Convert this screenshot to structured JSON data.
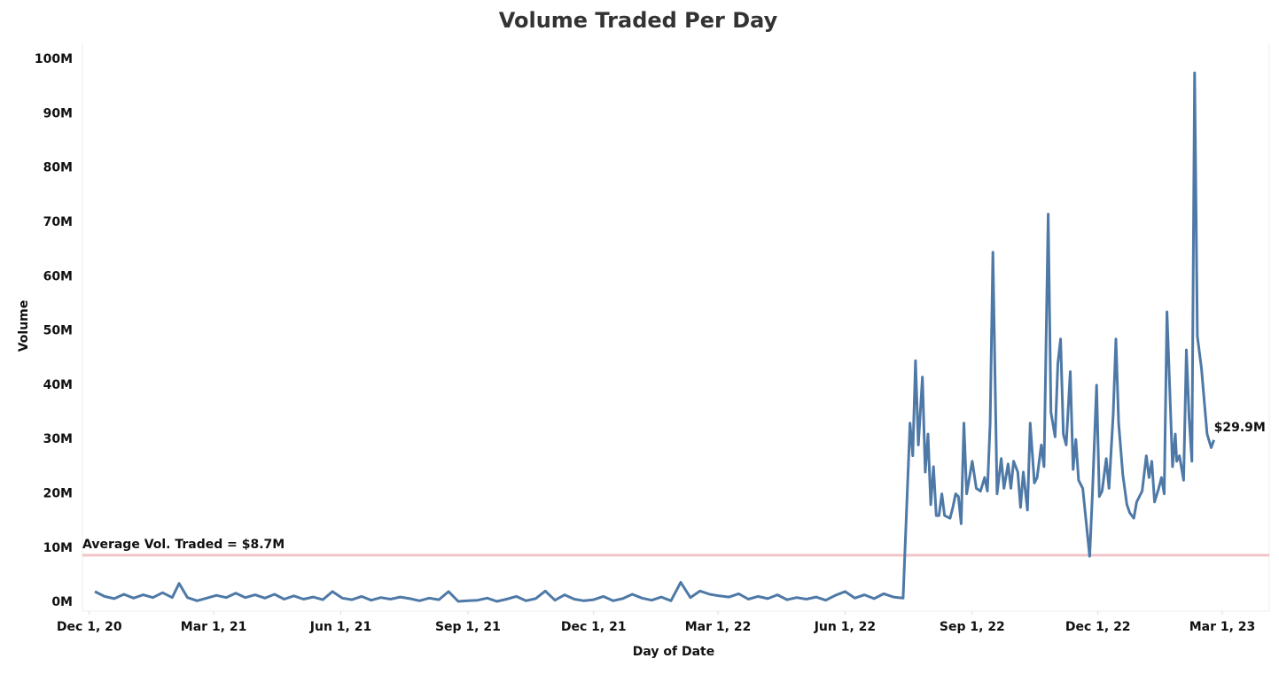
{
  "chart_data": {
    "type": "line",
    "title": "Volume Traded Per Day",
    "x_label": "Day of Date",
    "y_label": "Volume",
    "xlim": [
      "2020-11-26",
      "2023-04-04"
    ],
    "xticks": [
      {
        "value": "2020-12-01",
        "label": "Dec 1, 20"
      },
      {
        "value": "2021-03-01",
        "label": "Mar 1, 21"
      },
      {
        "value": "2021-06-01",
        "label": "Jun 1, 21"
      },
      {
        "value": "2021-09-01",
        "label": "Sep 1, 21"
      },
      {
        "value": "2021-12-01",
        "label": "Dec 1, 21"
      },
      {
        "value": "2022-03-01",
        "label": "Mar 1, 22"
      },
      {
        "value": "2022-06-01",
        "label": "Jun 1, 22"
      },
      {
        "value": "2022-09-01",
        "label": "Sep 1, 22"
      },
      {
        "value": "2022-12-01",
        "label": "Dec 1, 22"
      },
      {
        "value": "2023-03-01",
        "label": "Mar 1, 23"
      }
    ],
    "ylim": [
      -1600000,
      103100000
    ],
    "yticks": [
      {
        "value": 0,
        "label": "0M"
      },
      {
        "value": 10000000,
        "label": "10M"
      },
      {
        "value": 20000000,
        "label": "20M"
      },
      {
        "value": 30000000,
        "label": "30M"
      },
      {
        "value": 40000000,
        "label": "40M"
      },
      {
        "value": 50000000,
        "label": "50M"
      },
      {
        "value": 60000000,
        "label": "60M"
      },
      {
        "value": 70000000,
        "label": "70M"
      },
      {
        "value": 80000000,
        "label": "80M"
      },
      {
        "value": 90000000,
        "label": "90M"
      },
      {
        "value": 100000000,
        "label": "100M"
      }
    ],
    "grid": false,
    "reference_line": {
      "value": 8700000,
      "label": "Average Vol. Traded = $8.7M",
      "color": "#f2c4c8"
    },
    "end_label": {
      "value": 29900000,
      "label": "$29.9M"
    },
    "series": [
      {
        "name": "Volume",
        "color": "#4e79a7",
        "x": [
          "2020-12-05",
          "2020-12-12",
          "2020-12-19",
          "2020-12-26",
          "2021-01-02",
          "2021-01-09",
          "2021-01-16",
          "2021-01-23",
          "2021-01-30",
          "2021-02-04",
          "2021-02-10",
          "2021-02-17",
          "2021-02-24",
          "2021-03-03",
          "2021-03-10",
          "2021-03-17",
          "2021-03-24",
          "2021-03-31",
          "2021-04-07",
          "2021-04-14",
          "2021-04-21",
          "2021-04-28",
          "2021-05-05",
          "2021-05-12",
          "2021-05-19",
          "2021-05-26",
          "2021-06-02",
          "2021-06-09",
          "2021-06-16",
          "2021-06-23",
          "2021-06-30",
          "2021-07-07",
          "2021-07-14",
          "2021-07-21",
          "2021-07-28",
          "2021-08-04",
          "2021-08-11",
          "2021-08-18",
          "2021-08-25",
          "2021-09-01",
          "2021-09-08",
          "2021-09-15",
          "2021-09-22",
          "2021-09-29",
          "2021-10-06",
          "2021-10-13",
          "2021-10-20",
          "2021-10-27",
          "2021-11-03",
          "2021-11-10",
          "2021-11-17",
          "2021-11-24",
          "2021-12-01",
          "2021-12-08",
          "2021-12-15",
          "2021-12-22",
          "2021-12-29",
          "2022-01-05",
          "2022-01-12",
          "2022-01-19",
          "2022-01-26",
          "2022-02-02",
          "2022-02-09",
          "2022-02-16",
          "2022-02-23",
          "2022-03-02",
          "2022-03-09",
          "2022-03-16",
          "2022-03-23",
          "2022-03-30",
          "2022-04-06",
          "2022-04-13",
          "2022-04-20",
          "2022-04-27",
          "2022-05-04",
          "2022-05-11",
          "2022-05-18",
          "2022-05-25",
          "2022-06-01",
          "2022-06-08",
          "2022-06-15",
          "2022-06-22",
          "2022-06-29",
          "2022-07-06",
          "2022-07-13",
          "2022-07-18",
          "2022-07-20",
          "2022-07-22",
          "2022-07-24",
          "2022-07-27",
          "2022-07-29",
          "2022-07-31",
          "2022-08-02",
          "2022-08-04",
          "2022-08-06",
          "2022-08-08",
          "2022-08-10",
          "2022-08-12",
          "2022-08-16",
          "2022-08-18",
          "2022-08-20",
          "2022-08-22",
          "2022-08-24",
          "2022-08-26",
          "2022-08-28",
          "2022-09-01",
          "2022-09-04",
          "2022-09-07",
          "2022-09-10",
          "2022-09-12",
          "2022-09-14",
          "2022-09-16",
          "2022-09-19",
          "2022-09-22",
          "2022-09-24",
          "2022-09-27",
          "2022-09-29",
          "2022-10-01",
          "2022-10-04",
          "2022-10-06",
          "2022-10-08",
          "2022-10-11",
          "2022-10-13",
          "2022-10-16",
          "2022-10-18",
          "2022-10-21",
          "2022-10-23",
          "2022-10-26",
          "2022-10-28",
          "2022-10-31",
          "2022-11-02",
          "2022-11-04",
          "2022-11-06",
          "2022-11-08",
          "2022-11-11",
          "2022-11-13",
          "2022-11-15",
          "2022-11-17",
          "2022-11-20",
          "2022-11-22",
          "2022-11-25",
          "2022-11-27",
          "2022-11-30",
          "2022-12-02",
          "2022-12-04",
          "2022-12-07",
          "2022-12-09",
          "2022-12-12",
          "2022-12-14",
          "2022-12-16",
          "2022-12-19",
          "2022-12-22",
          "2022-12-24",
          "2022-12-27",
          "2022-12-29",
          "2023-01-02",
          "2023-01-05",
          "2023-01-07",
          "2023-01-09",
          "2023-01-11",
          "2023-01-14",
          "2023-01-16",
          "2023-01-18",
          "2023-01-20",
          "2023-01-24",
          "2023-01-26",
          "2023-01-27",
          "2023-01-29",
          "2023-02-01",
          "2023-02-03",
          "2023-02-05",
          "2023-02-07",
          "2023-02-09",
          "2023-02-11",
          "2023-02-14",
          "2023-02-16",
          "2023-02-18",
          "2023-02-21",
          "2023-02-23"
        ],
        "values": [
          2000000,
          1100000,
          700000,
          1500000,
          800000,
          1400000,
          900000,
          1800000,
          900000,
          3500000,
          900000,
          300000,
          800000,
          1300000,
          900000,
          1700000,
          900000,
          1400000,
          800000,
          1500000,
          600000,
          1200000,
          600000,
          1000000,
          500000,
          2000000,
          800000,
          500000,
          1100000,
          400000,
          900000,
          600000,
          1000000,
          700000,
          300000,
          800000,
          500000,
          2000000,
          200000,
          300000,
          400000,
          800000,
          200000,
          600000,
          1100000,
          300000,
          700000,
          2100000,
          400000,
          1400000,
          600000,
          300000,
          500000,
          1100000,
          300000,
          700000,
          1500000,
          800000,
          400000,
          1000000,
          300000,
          3700000,
          900000,
          2100000,
          1500000,
          1200000,
          1000000,
          1600000,
          600000,
          1100000,
          700000,
          1400000,
          500000,
          900000,
          600000,
          1000000,
          400000,
          1300000,
          2000000,
          800000,
          1400000,
          700000,
          1600000,
          1000000,
          800000,
          33000000,
          27000000,
          44500000,
          29000000,
          41500000,
          24000000,
          31000000,
          18000000,
          25000000,
          16000000,
          16000000,
          20000000,
          16000000,
          15500000,
          17500000,
          20000000,
          19500000,
          14500000,
          33000000,
          20000000,
          26000000,
          21000000,
          20500000,
          23000000,
          20500000,
          33000000,
          64500000,
          20000000,
          26500000,
          21000000,
          25500000,
          21000000,
          26000000,
          24000000,
          17500000,
          24000000,
          17000000,
          33000000,
          22000000,
          23000000,
          29000000,
          25000000,
          71500000,
          35000000,
          30500000,
          44000000,
          48500000,
          31000000,
          29000000,
          42500000,
          24500000,
          30000000,
          22500000,
          21000000,
          16000000,
          8500000,
          20000000,
          40000000,
          19500000,
          20500000,
          26500000,
          21000000,
          34500000,
          48500000,
          33000000,
          23500000,
          18000000,
          16500000,
          15500000,
          18500000,
          20500000,
          27000000,
          23000000,
          26000000,
          18500000,
          21000000,
          23000000,
          20000000,
          53500000,
          25000000,
          31000000,
          26000000,
          27000000,
          22500000,
          46500000,
          34000000,
          26000000,
          97500000,
          49000000,
          43000000,
          37000000,
          31000000,
          28500000,
          29900000
        ]
      }
    ]
  }
}
